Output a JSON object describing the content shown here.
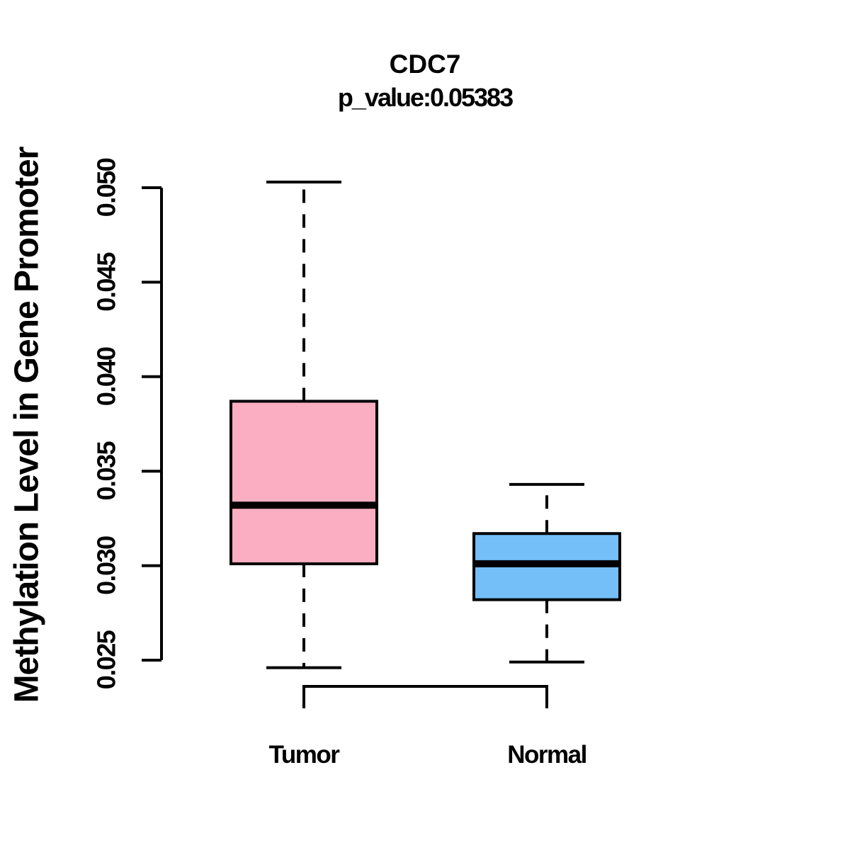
{
  "chart_data": {
    "type": "boxplot",
    "title": "CDC7",
    "subtitle": "p_value:0.05383",
    "ylabel": "Methylation Level in Gene Promoter",
    "categories": [
      "Tumor",
      "Normal"
    ],
    "ylim": [
      0.025,
      0.05
    ],
    "y_ticks": [
      0.025,
      0.03,
      0.035,
      0.04,
      0.045,
      0.05
    ],
    "y_tick_labels": [
      "0.025",
      "0.030",
      "0.035",
      "0.040",
      "0.045",
      "0.050"
    ],
    "grid": "off",
    "legend": "none",
    "series": [
      {
        "name": "Tumor",
        "color": "#FBAEC2",
        "whisker_low": 0.0246,
        "q1": 0.0301,
        "median": 0.0332,
        "q3": 0.0387,
        "whisker_high": 0.0503
      },
      {
        "name": "Normal",
        "color": "#74BFF7",
        "whisker_low": 0.0249,
        "q1": 0.0282,
        "median": 0.0301,
        "q3": 0.0317,
        "whisker_high": 0.0343
      }
    ],
    "comparison_bracket": {
      "connects": [
        "Tumor",
        "Normal"
      ]
    },
    "colors": {
      "stroke": "#000000",
      "background": "#FFFFFF"
    }
  }
}
